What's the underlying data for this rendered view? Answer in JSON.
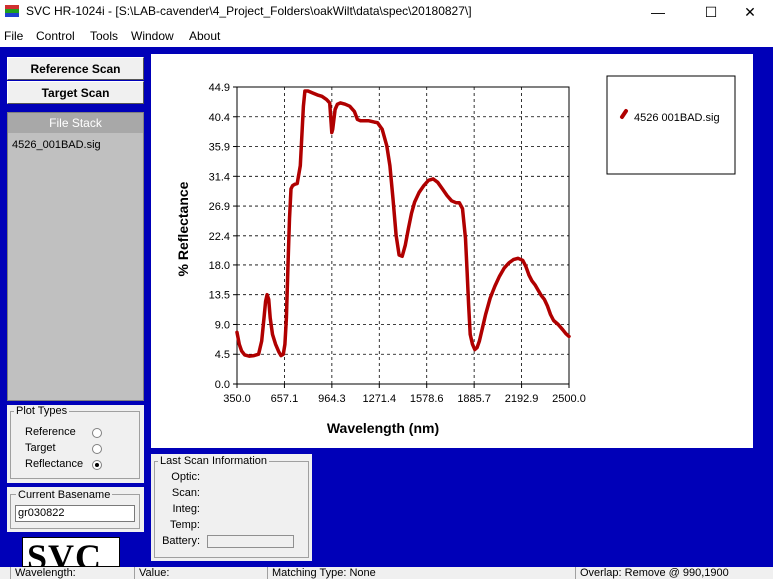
{
  "window": {
    "title": "SVC HR-1024i  - [S:\\LAB-cavender\\4_Project_Folders\\oakWilt\\data\\spec\\20180827\\]",
    "minimize_glyph": "—",
    "maximize_glyph": "☐",
    "close_glyph": "✕"
  },
  "menu": [
    "File",
    "Control",
    "Tools",
    "Window",
    "About"
  ],
  "buttons": {
    "reference_scan": "Reference Scan",
    "target_scan": "Target Scan"
  },
  "file_stack": {
    "header": "File Stack",
    "items": [
      "4526_001BAD.sig"
    ]
  },
  "plot_types": {
    "label": "Plot Types",
    "options": [
      {
        "label": "Reference",
        "selected": false
      },
      {
        "label": "Target",
        "selected": false
      },
      {
        "label": "Reflectance",
        "selected": true
      }
    ]
  },
  "basename": {
    "label": "Current Basename",
    "value": "gr030822"
  },
  "logo_text": "SVC",
  "last_scan": {
    "label": "Last Scan Information",
    "fields": [
      "Optic:",
      "Scan:",
      "Integ:",
      "Temp:",
      "Battery:"
    ]
  },
  "status_bar": {
    "wavelength": "Wavelength:",
    "value": "Value:",
    "matching_type": "Matching Type: None",
    "overlap": "Overlap: Remove @ 990,1900"
  },
  "colors": {
    "series": "#b00000",
    "main_background": "#0000b8"
  },
  "chart_data": {
    "type": "line",
    "title": "",
    "xlabel": "Wavelength (nm)",
    "ylabel": "% Reflectance",
    "xlim": [
      350.0,
      2500.0
    ],
    "ylim": [
      0.0,
      44.9
    ],
    "x_ticks": [
      "350.0",
      "657.1",
      "964.3",
      "1271.4",
      "1578.6",
      "1885.7",
      "2192.9",
      "2500.0"
    ],
    "y_ticks": [
      "0.0",
      "4.5",
      "9.0",
      "13.5",
      "18.0",
      "22.4",
      "26.9",
      "31.4",
      "35.9",
      "40.4",
      "44.9"
    ],
    "grid": true,
    "legend": "top-right",
    "series": [
      {
        "name": "4526 001BAD.sig",
        "color": "#b00000",
        "points": [
          [
            350,
            7.8
          ],
          [
            365,
            6.0
          ],
          [
            380,
            5.0
          ],
          [
            400,
            4.4
          ],
          [
            430,
            4.2
          ],
          [
            460,
            4.3
          ],
          [
            490,
            4.5
          ],
          [
            510,
            6.5
          ],
          [
            525,
            10.0
          ],
          [
            535,
            12.5
          ],
          [
            545,
            13.5
          ],
          [
            555,
            12.8
          ],
          [
            565,
            10.0
          ],
          [
            580,
            7.5
          ],
          [
            600,
            6.0
          ],
          [
            620,
            4.9
          ],
          [
            635,
            4.3
          ],
          [
            650,
            4.5
          ],
          [
            660,
            6.0
          ],
          [
            670,
            10.0
          ],
          [
            680,
            18.0
          ],
          [
            690,
            25.0
          ],
          [
            700,
            29.5
          ],
          [
            710,
            30.0
          ],
          [
            725,
            30.2
          ],
          [
            740,
            30.3
          ],
          [
            760,
            33.0
          ],
          [
            780,
            42.0
          ],
          [
            790,
            44.3
          ],
          [
            810,
            44.3
          ],
          [
            840,
            44.0
          ],
          [
            870,
            43.7
          ],
          [
            900,
            43.5
          ],
          [
            930,
            43.0
          ],
          [
            950,
            42.5
          ],
          [
            964,
            38.0
          ],
          [
            970,
            38.5
          ],
          [
            985,
            41.5
          ],
          [
            1000,
            42.3
          ],
          [
            1020,
            42.5
          ],
          [
            1050,
            42.3
          ],
          [
            1080,
            42.0
          ],
          [
            1110,
            41.2
          ],
          [
            1130,
            40.0
          ],
          [
            1150,
            39.8
          ],
          [
            1200,
            39.8
          ],
          [
            1240,
            39.6
          ],
          [
            1260,
            39.5
          ],
          [
            1290,
            38.5
          ],
          [
            1320,
            36.0
          ],
          [
            1340,
            33.0
          ],
          [
            1360,
            28.0
          ],
          [
            1380,
            22.5
          ],
          [
            1400,
            19.5
          ],
          [
            1420,
            19.3
          ],
          [
            1440,
            21.0
          ],
          [
            1460,
            23.5
          ],
          [
            1480,
            25.8
          ],
          [
            1500,
            27.5
          ],
          [
            1530,
            29.0
          ],
          [
            1560,
            30.0
          ],
          [
            1590,
            30.8
          ],
          [
            1620,
            31.0
          ],
          [
            1650,
            30.5
          ],
          [
            1680,
            29.5
          ],
          [
            1710,
            28.5
          ],
          [
            1740,
            27.7
          ],
          [
            1770,
            27.4
          ],
          [
            1790,
            27.4
          ],
          [
            1810,
            26.5
          ],
          [
            1830,
            22.0
          ],
          [
            1840,
            17.0
          ],
          [
            1850,
            12.0
          ],
          [
            1860,
            7.5
          ],
          [
            1875,
            6.0
          ],
          [
            1890,
            5.2
          ],
          [
            1905,
            5.5
          ],
          [
            1920,
            6.5
          ],
          [
            1940,
            8.5
          ],
          [
            1960,
            10.5
          ],
          [
            1990,
            13.0
          ],
          [
            2020,
            14.8
          ],
          [
            2050,
            16.3
          ],
          [
            2080,
            17.5
          ],
          [
            2110,
            18.3
          ],
          [
            2140,
            18.8
          ],
          [
            2170,
            19.0
          ],
          [
            2200,
            18.7
          ],
          [
            2220,
            17.8
          ],
          [
            2240,
            16.5
          ],
          [
            2260,
            15.6
          ],
          [
            2280,
            15.0
          ],
          [
            2300,
            14.2
          ],
          [
            2320,
            13.4
          ],
          [
            2340,
            12.8
          ],
          [
            2360,
            11.8
          ],
          [
            2380,
            10.5
          ],
          [
            2400,
            9.6
          ],
          [
            2430,
            9.0
          ],
          [
            2460,
            8.2
          ],
          [
            2480,
            7.6
          ],
          [
            2500,
            7.2
          ]
        ]
      }
    ]
  }
}
